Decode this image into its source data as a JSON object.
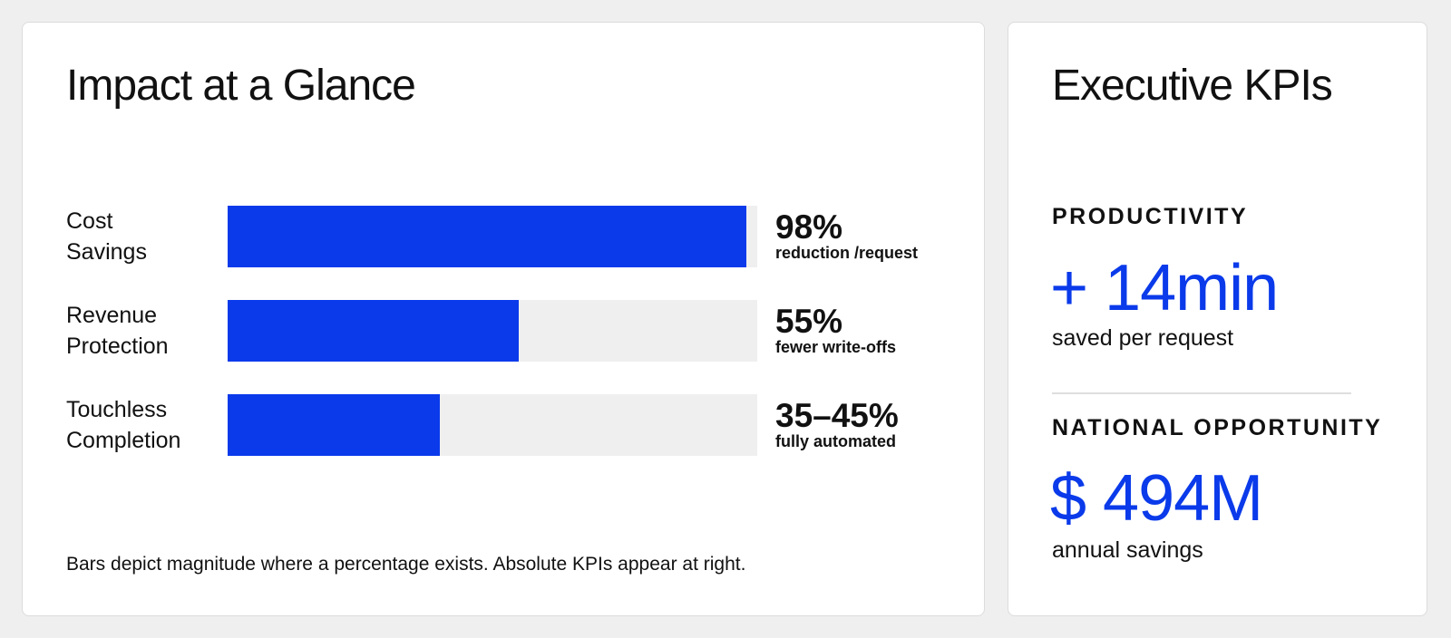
{
  "impact": {
    "title": "Impact at a Glance",
    "footnote": "Bars depict magnitude where a percentage exists. Absolute KPIs appear at right."
  },
  "chart_data": {
    "type": "bar",
    "orientation": "horizontal",
    "title": "Impact at a Glance",
    "categories": [
      [
        "Cost",
        "Savings"
      ],
      [
        "Revenue",
        "Protection"
      ],
      [
        "Touchless",
        "Completion"
      ]
    ],
    "values": [
      98,
      55,
      40
    ],
    "value_labels": [
      "98%",
      "55%",
      "35–45%"
    ],
    "sublabels": [
      "reduction /request",
      "fewer write-offs",
      "fully automated"
    ],
    "xlim": [
      0,
      100
    ],
    "colors": {
      "fill": "#0a3aea",
      "track": "#efefef"
    }
  },
  "kpis": {
    "title": "Executive KPIs",
    "productivity": {
      "label": "PRODUCTIVITY",
      "value": "+ 14min",
      "caption": "saved per request"
    },
    "opportunity": {
      "label": "NATIONAL OPPORTUNITY",
      "value": "$ 494M",
      "caption": "annual savings"
    }
  }
}
